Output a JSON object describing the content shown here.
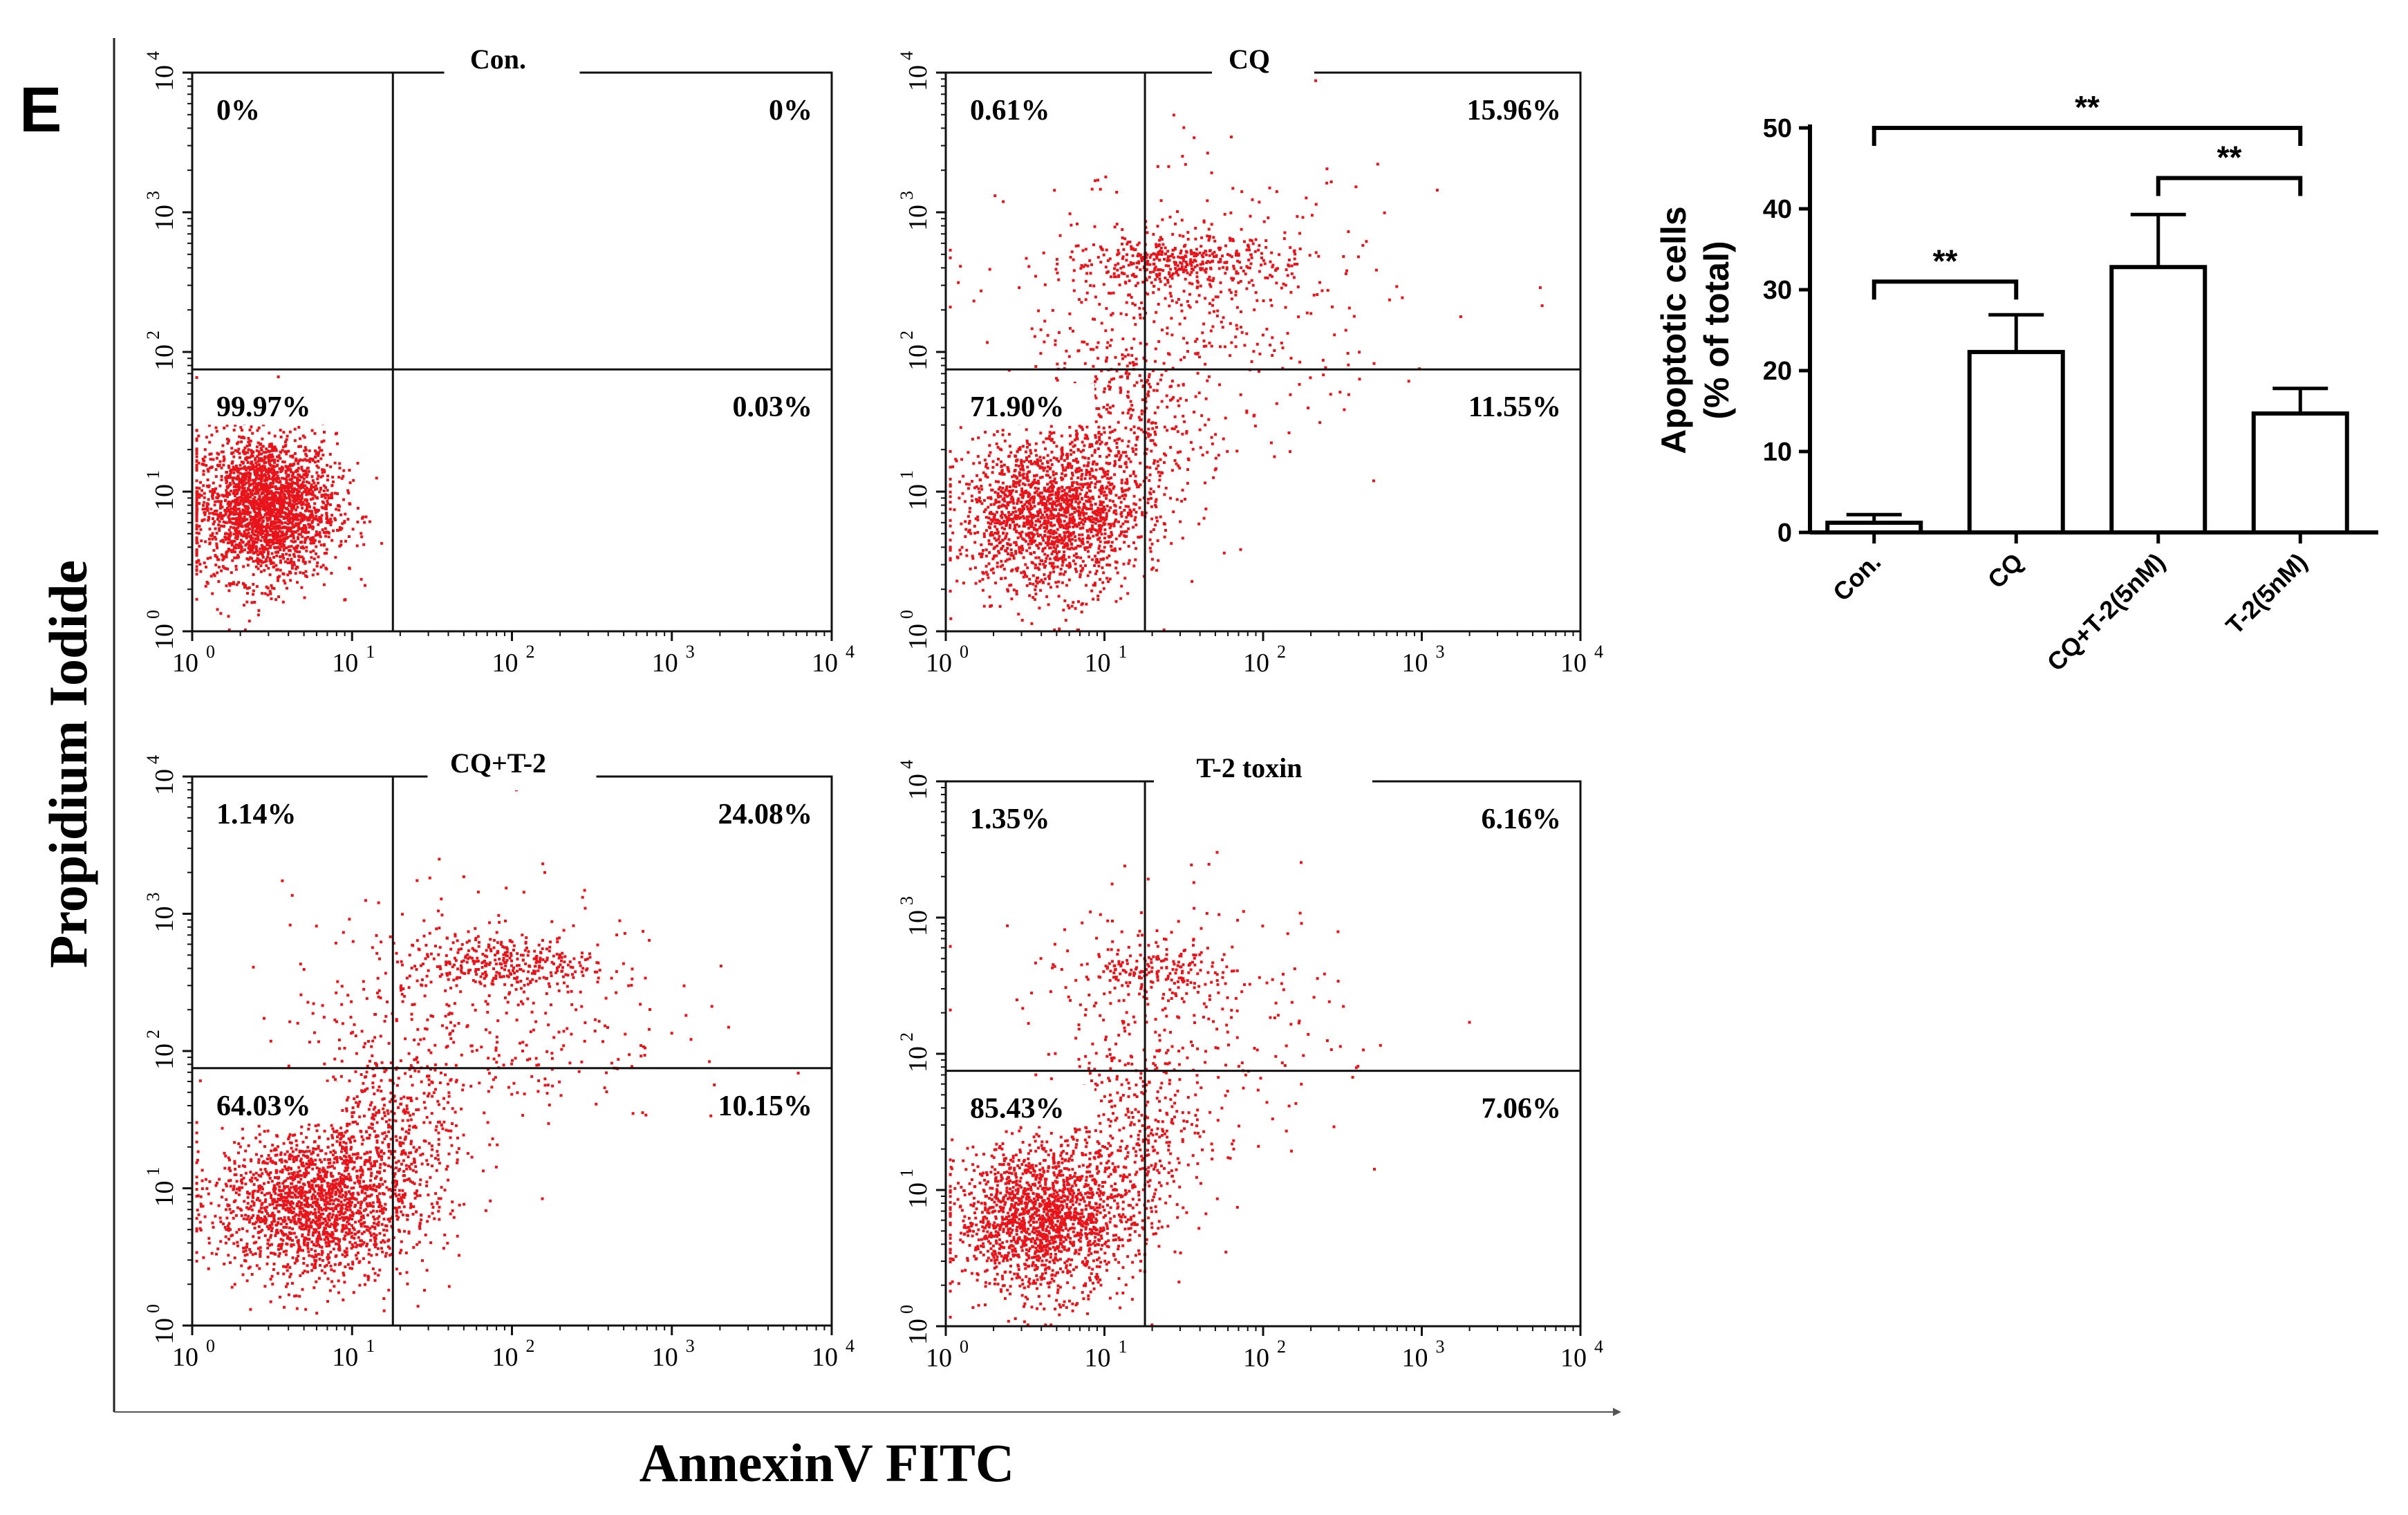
{
  "panel_label": "E",
  "shared_axes": {
    "ylabel": "Propidium Iodide",
    "xlabel": "AnnexinV FITC"
  },
  "chart_data": [
    {
      "type": "scatter",
      "subtype": "flow-cytometry-quadrant",
      "title": "Con.",
      "xscale": "log",
      "yscale": "log",
      "xlim": [
        1,
        10000
      ],
      "ylim": [
        1,
        10000
      ],
      "x_ticks": [
        "10^0",
        "10^1",
        "10^2",
        "10^3",
        "10^4"
      ],
      "y_ticks": [
        "10^0",
        "10^1",
        "10^2",
        "10^3",
        "10^4"
      ],
      "gate": {
        "x": 18,
        "y": 75
      },
      "quadrants": {
        "upper_left": "0%",
        "upper_right": "0%",
        "lower_left": "99.97%",
        "lower_right": "0.03%"
      },
      "color": "#e8141b"
    },
    {
      "type": "scatter",
      "subtype": "flow-cytometry-quadrant",
      "title": "CQ",
      "xscale": "log",
      "yscale": "log",
      "xlim": [
        1,
        10000
      ],
      "ylim": [
        1,
        10000
      ],
      "x_ticks": [
        "10^0",
        "10^1",
        "10^2",
        "10^3",
        "10^4"
      ],
      "y_ticks": [
        "10^0",
        "10^1",
        "10^2",
        "10^3",
        "10^4"
      ],
      "gate": {
        "x": 18,
        "y": 75
      },
      "quadrants": {
        "upper_left": "0.61%",
        "upper_right": "15.96%",
        "lower_left": "71.90%",
        "lower_right": "11.55%"
      },
      "color": "#e8141b"
    },
    {
      "type": "scatter",
      "subtype": "flow-cytometry-quadrant",
      "title": "CQ+T-2",
      "xscale": "log",
      "yscale": "log",
      "xlim": [
        1,
        10000
      ],
      "ylim": [
        1,
        10000
      ],
      "x_ticks": [
        "10^0",
        "10^1",
        "10^2",
        "10^3",
        "10^4"
      ],
      "y_ticks": [
        "10^0",
        "10^1",
        "10^2",
        "10^3",
        "10^4"
      ],
      "gate": {
        "x": 18,
        "y": 75
      },
      "quadrants": {
        "upper_left": "1.14%",
        "upper_right": "24.08%",
        "lower_left": "64.03%",
        "lower_right": "10.15%"
      },
      "color": "#e8141b"
    },
    {
      "type": "scatter",
      "subtype": "flow-cytometry-quadrant",
      "title": "T-2 toxin",
      "xscale": "log",
      "yscale": "log",
      "xlim": [
        1,
        10000
      ],
      "ylim": [
        1,
        10000
      ],
      "x_ticks": [
        "10^0",
        "10^1",
        "10^2",
        "10^3",
        "10^4"
      ],
      "y_ticks": [
        "10^0",
        "10^1",
        "10^2",
        "10^3",
        "10^4"
      ],
      "gate": {
        "x": 18,
        "y": 75
      },
      "quadrants": {
        "upper_left": "1.35%",
        "upper_right": "6.16%",
        "lower_left": "85.43%",
        "lower_right": "7.06%"
      },
      "color": "#e8141b"
    },
    {
      "type": "bar",
      "title": "",
      "categories": [
        "Con.",
        "CQ",
        "CQ+T-2(5nM)",
        "T-2(5nM)"
      ],
      "values": [
        1.2,
        22.3,
        32.8,
        14.7
      ],
      "errors": [
        1.0,
        4.6,
        6.5,
        3.1
      ],
      "ylabel_line1": "Apoptotic cells",
      "ylabel_line2": "(% of total)",
      "xlabel": "",
      "ylim": [
        0,
        50
      ],
      "yticks": [
        0,
        10,
        20,
        30,
        40,
        50
      ],
      "significance": [
        {
          "from": 0,
          "to": 1,
          "label": "**"
        },
        {
          "from": 2,
          "to": 3,
          "label": "**"
        },
        {
          "from": 0,
          "to": 3,
          "label": "**"
        }
      ]
    }
  ]
}
